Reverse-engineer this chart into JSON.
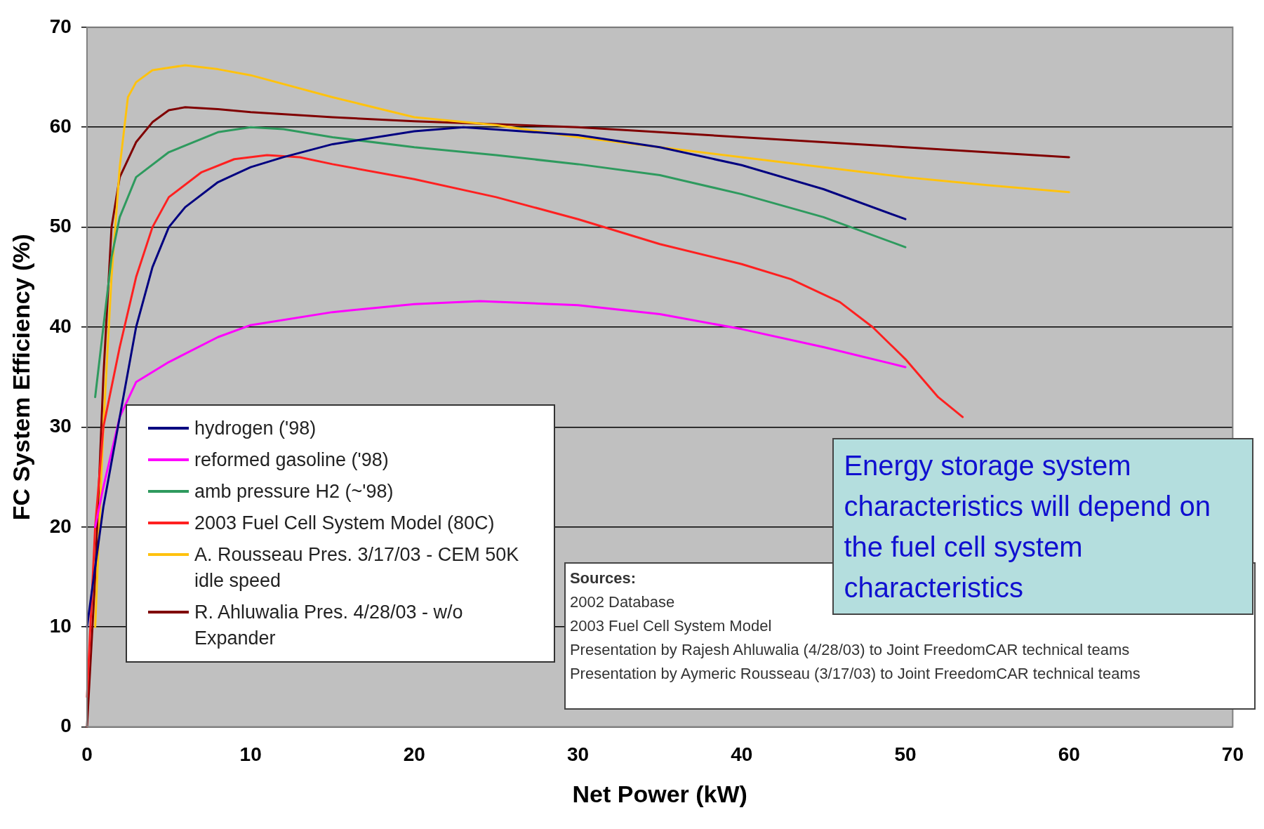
{
  "chart_data": {
    "type": "line",
    "xlabel": "Net Power (kW)",
    "ylabel": "FC System Efficiency (%)",
    "xlim": [
      0,
      70
    ],
    "xticks": [
      0,
      10,
      20,
      30,
      40,
      50,
      60,
      70
    ],
    "ylim": [
      0,
      70
    ],
    "yticks": [
      0,
      10,
      20,
      30,
      40,
      50,
      60,
      70
    ],
    "grid": "y",
    "legend": "bottom left",
    "marker": "none",
    "line_style": "solid",
    "series": [
      {
        "name": "hydrogen ('98)",
        "color": "#000080",
        "x": [
          0,
          1,
          2,
          3,
          4,
          5,
          6,
          8,
          10,
          12,
          15,
          20,
          23,
          30,
          35,
          40,
          45,
          50
        ],
        "values": [
          10,
          22,
          31,
          40,
          46,
          50,
          52,
          54.5,
          56,
          57,
          58.3,
          59.6,
          60,
          59.2,
          58,
          56.2,
          53.8,
          50.8
        ]
      },
      {
        "name": "reformed gasoline ('98)",
        "color": "#ff00ff",
        "x": [
          0.5,
          1,
          2,
          3,
          5,
          8,
          10,
          15,
          20,
          24,
          30,
          35,
          40,
          45,
          50
        ],
        "values": [
          20,
          24,
          31,
          34.5,
          36.5,
          39,
          40.2,
          41.5,
          42.3,
          42.6,
          42.2,
          41.3,
          39.8,
          38,
          36
        ]
      },
      {
        "name": "amb pressure H2 (~'98)",
        "color": "#2e9a5e",
        "x": [
          0.5,
          1,
          1.5,
          2,
          3,
          5,
          8,
          10,
          12,
          15,
          20,
          25,
          30,
          35,
          40,
          45,
          50
        ],
        "values": [
          33,
          40,
          47,
          51,
          55,
          57.5,
          59.5,
          60,
          59.8,
          59,
          58,
          57.2,
          56.3,
          55.2,
          53.3,
          51,
          48
        ]
      },
      {
        "name": "2003 Fuel Cell System Model (80C)",
        "color": "#ff2020",
        "x": [
          0,
          0.5,
          1,
          2,
          3,
          4,
          5,
          7,
          9,
          11,
          13,
          15,
          20,
          25,
          30,
          35,
          40,
          43,
          46,
          48,
          50,
          52,
          53.5
        ],
        "values": [
          3,
          20,
          30,
          38,
          45,
          50,
          53,
          55.5,
          56.8,
          57.2,
          57,
          56.3,
          54.8,
          53,
          50.8,
          48.3,
          46.3,
          44.8,
          42.5,
          40,
          36.8,
          33,
          31
        ]
      },
      {
        "name": "A. Rousseau Pres. 3/17/03 - CEM 50K idle speed",
        "color": "#ffc20e",
        "x": [
          0.5,
          1,
          1.5,
          2,
          2.5,
          3,
          4,
          6,
          8,
          10,
          15,
          20,
          25,
          30,
          35,
          40,
          45,
          50,
          55,
          60
        ],
        "values": [
          10,
          30,
          45,
          56,
          63,
          64.5,
          65.7,
          66.2,
          65.8,
          65.2,
          63,
          61,
          60.2,
          59,
          58,
          57,
          56,
          55,
          54.2,
          53.5
        ]
      },
      {
        "name": "R. Ahluwalia Pres. 4/28/03 - w/o Expander",
        "color": "#800000",
        "x": [
          0,
          0.5,
          1,
          1.5,
          2,
          3,
          4,
          5,
          6,
          8,
          10,
          15,
          20,
          30,
          40,
          50,
          60
        ],
        "values": [
          0,
          15,
          35,
          50,
          55,
          58.5,
          60.5,
          61.7,
          62,
          61.8,
          61.5,
          61,
          60.6,
          60,
          59,
          58,
          57
        ]
      }
    ],
    "annotations": [
      "Energy storage system characteristics will depend on the fuel cell system characteristics",
      "Sources:\n2002 Database\n2003 Fuel Cell System Model\nPresentation by Rajesh Ahluwalia (4/28/03) to Joint FreedomCAR technical teams\nPresentation by Aymeric Rousseau (3/17/03) to Joint FreedomCAR technical teams"
    ]
  }
}
